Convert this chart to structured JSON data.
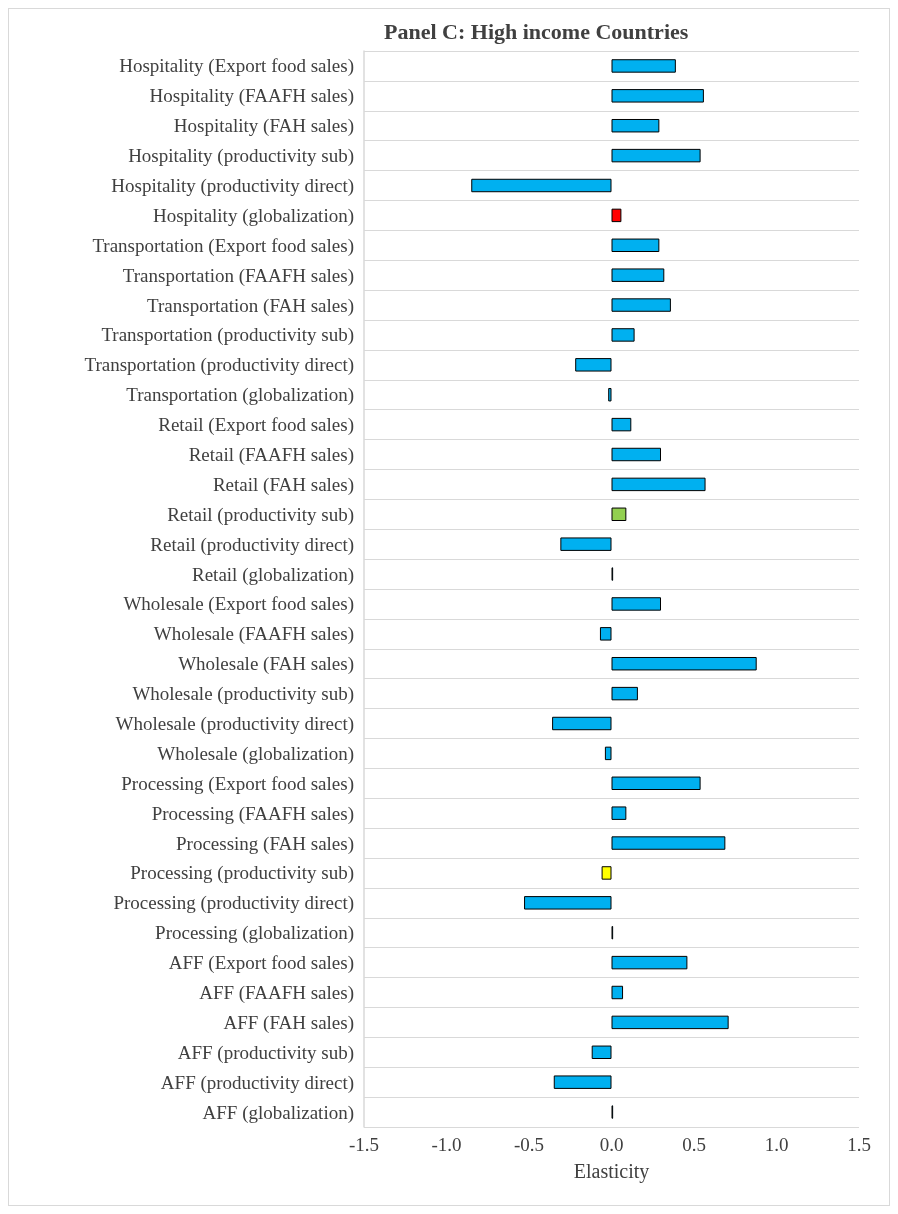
{
  "chart_data": {
    "type": "bar",
    "orientation": "horizontal",
    "title": "Panel C: High income Countries",
    "xlabel": "Elasticity",
    "categories": [
      "Hospitality (Export food sales)",
      "Hospitality (FAAFH sales)",
      "Hospitality (FAH sales)",
      "Hospitality (productivity sub)",
      "Hospitality (productivity direct)",
      "Hospitality (globalization)",
      "Transportation (Export food sales)",
      "Transportation (FAAFH sales)",
      "Transportation (FAH sales)",
      "Transportation (productivity sub)",
      "Transportation (productivity direct)",
      "Transportation (globalization)",
      "Retail (Export food sales)",
      "Retail (FAAFH sales)",
      "Retail (FAH sales)",
      "Retail (productivity sub)",
      "Retail (productivity direct)",
      "Retail (globalization)",
      "Wholesale (Export food sales)",
      "Wholesale (FAAFH sales)",
      "Wholesale (FAH sales)",
      "Wholesale (productivity sub)",
      "Wholesale (productivity direct)",
      "Wholesale (globalization)",
      "Processing (Export food sales)",
      "Processing (FAAFH sales)",
      "Processing (FAH sales)",
      "Processing (productivity sub)",
      "Processing (productivity direct)",
      "Processing (globalization)",
      "AFF (Export food sales)",
      "AFF (FAAFH sales)",
      "AFF (FAH sales)",
      "AFF (productivity sub)",
      "AFF (productivity direct)",
      "AFF (globalization)"
    ],
    "values": [
      0.39,
      0.56,
      0.29,
      0.54,
      -0.85,
      0.06,
      0.29,
      0.32,
      0.36,
      0.14,
      -0.22,
      -0.02,
      0.12,
      0.3,
      0.57,
      0.09,
      -0.31,
      0.01,
      0.3,
      -0.07,
      0.88,
      0.16,
      -0.36,
      -0.04,
      0.54,
      0.09,
      0.69,
      -0.06,
      -0.53,
      0.01,
      0.46,
      0.07,
      0.71,
      -0.12,
      -0.35,
      0.01
    ],
    "colors": [
      "#00b0f0",
      "#00b0f0",
      "#00b0f0",
      "#00b0f0",
      "#00b0f0",
      "#ff0000",
      "#00b0f0",
      "#00b0f0",
      "#00b0f0",
      "#00b0f0",
      "#00b0f0",
      "#00b0f0",
      "#00b0f0",
      "#00b0f0",
      "#00b0f0",
      "#92d050",
      "#00b0f0",
      "#00b0f0",
      "#00b0f0",
      "#00b0f0",
      "#00b0f0",
      "#00b0f0",
      "#00b0f0",
      "#00b0f0",
      "#00b0f0",
      "#00b0f0",
      "#00b0f0",
      "#ffff00",
      "#00b0f0",
      "#00b0f0",
      "#00b0f0",
      "#00b0f0",
      "#00b0f0",
      "#00b0f0",
      "#00b0f0",
      "#00b0f0"
    ],
    "xlim": [
      -1.5,
      1.5
    ],
    "xticks": [
      {
        "value": -1.5,
        "label": "-1.5"
      },
      {
        "value": -1.0,
        "label": "-1.0"
      },
      {
        "value": -0.5,
        "label": "-0.5"
      },
      {
        "value": 0,
        "label": "0.0"
      },
      {
        "value": 0.5,
        "label": "0.5"
      },
      {
        "value": 1.0,
        "label": "1.0"
      },
      {
        "value": 1.5,
        "label": "1.5"
      }
    ],
    "grid": "y"
  }
}
